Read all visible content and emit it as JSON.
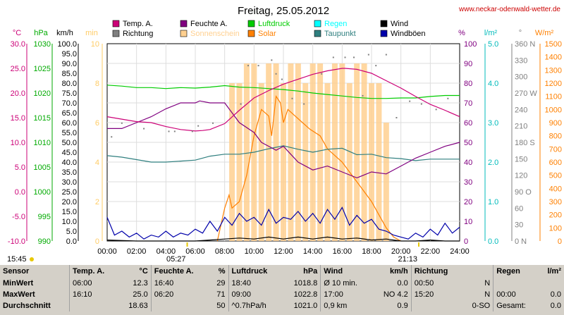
{
  "chart_data": {
    "type": "line",
    "title": "Freitag, 25.05.2012",
    "source": "www.neckar-odenwald-wetter.de",
    "x_ticks": [
      "00:00",
      "02:00",
      "04:00",
      "06:00",
      "08:00",
      "10:00",
      "12:00",
      "14:00",
      "16:00",
      "18:00",
      "20:00",
      "22:00",
      "24:00"
    ],
    "sunrise": "05:27",
    "sunset": "21:13",
    "start_time": "15:45",
    "legend": [
      {
        "name": "Temp. A.",
        "color": "#cc0077"
      },
      {
        "name": "Feuchte A.",
        "color": "#800080"
      },
      {
        "name": "Luftdruck",
        "color": "#00cc00"
      },
      {
        "name": "Regen",
        "color": "#00ffff"
      },
      {
        "name": "Wind",
        "color": "#000000"
      },
      {
        "name": "Richtung",
        "color": "#808080"
      },
      {
        "name": "Sonnenschein",
        "color": "#ffd090"
      },
      {
        "name": "Solar",
        "color": "#ff8000"
      },
      {
        "name": "Taupunkt",
        "color": "#2f7f7f"
      },
      {
        "name": "Windböen",
        "color": "#0000aa"
      }
    ],
    "axes": {
      "temp": {
        "label": "°C",
        "ticks": [
          "30.0",
          "25.0",
          "20.0",
          "15.0",
          "10.0",
          "5.0",
          "0.0",
          "-5.0",
          "-10.0"
        ]
      },
      "pressure": {
        "label": "hPa",
        "ticks": [
          "1030",
          "1025",
          "1020",
          "1015",
          "1010",
          "1005",
          "1000",
          "995",
          "990"
        ]
      },
      "wind": {
        "label": "km/h",
        "ticks": [
          "100.0",
          "95.0",
          "90.0",
          "85.0",
          "80.0",
          "75.0",
          "70.0",
          "65.0",
          "60.0",
          "55.0",
          "50.0",
          "45.0",
          "40.0",
          "35.0",
          "30.0",
          "25.0",
          "20.0",
          "15.0",
          "10.0",
          "5.0",
          "0.0"
        ]
      },
      "sunshine_min": {
        "label": "min",
        "ticks": [
          "10",
          "8",
          "6",
          "4",
          "2",
          "0"
        ]
      },
      "humidity": {
        "label": "%",
        "ticks": [
          "100",
          "90",
          "80",
          "70",
          "60",
          "50",
          "40",
          "30",
          "20",
          "10",
          "0"
        ]
      },
      "rain": {
        "label": "l/m²",
        "ticks": [
          "5.0",
          "4.0",
          "3.0",
          "2.0",
          "1.0",
          "0.0"
        ]
      },
      "direction": {
        "label": "°",
        "ticks": [
          "360 N",
          "330",
          "300",
          "270 W",
          "240",
          "210",
          "180 S",
          "150",
          "120",
          "90 O",
          "60",
          "30",
          "0 N"
        ]
      },
      "solar": {
        "label": "W/m²",
        "ticks": [
          "1500",
          "1400",
          "1300",
          "1200",
          "1100",
          "1000",
          "900",
          "800",
          "700",
          "600",
          "500",
          "400",
          "300",
          "200",
          "100",
          "0"
        ]
      }
    },
    "series": [
      {
        "name": "Temp. A.",
        "unit": "°C",
        "x": [
          0,
          2,
          3,
          4,
          5,
          6,
          6.5,
          7,
          8,
          9,
          10,
          11,
          12,
          13,
          14,
          15,
          16,
          16.2,
          17,
          18,
          19,
          20,
          21,
          22,
          23,
          24
        ],
        "y": [
          15.2,
          14.2,
          14.0,
          13.2,
          12.6,
          12.3,
          12.4,
          12.6,
          13.8,
          16.5,
          19.0,
          20.5,
          21.8,
          22.8,
          23.8,
          24.5,
          25.0,
          25.0,
          24.8,
          24.0,
          22.5,
          21.0,
          19.3,
          17.7,
          16.5,
          15.2
        ]
      },
      {
        "name": "Feuchte A.",
        "unit": "%",
        "x": [
          0,
          1,
          2,
          3,
          4,
          5,
          6,
          6.3,
          7,
          8,
          9,
          10,
          10.5,
          11,
          11.5,
          12,
          12.5,
          13,
          14,
          15,
          16,
          17,
          18,
          19,
          20,
          21,
          22,
          23,
          24
        ],
        "y": [
          57,
          57,
          60,
          63,
          67,
          70,
          70,
          71,
          70,
          70,
          60,
          55,
          50,
          48,
          46,
          48,
          44,
          40,
          36,
          38,
          35,
          32,
          35,
          34,
          38,
          42,
          45,
          48,
          50
        ]
      },
      {
        "name": "Luftdruck",
        "unit": "hPa",
        "x": [
          0,
          1,
          2,
          3,
          4,
          5,
          6,
          7,
          8,
          9,
          10,
          11,
          12,
          13,
          14,
          15,
          16,
          17,
          18,
          19,
          20,
          21,
          22,
          23,
          24
        ],
        "y": [
          1021.6,
          1021.4,
          1021.1,
          1021.1,
          1020.9,
          1021.1,
          1021.0,
          1021.2,
          1021.5,
          1021.2,
          1021.1,
          1020.9,
          1020.7,
          1020.4,
          1020.0,
          1019.7,
          1019.4,
          1019.1,
          1018.9,
          1018.9,
          1019.0,
          1019.0,
          1019.3,
          1019.5,
          1019.5
        ]
      },
      {
        "name": "Taupunkt",
        "unit": "°C",
        "x": [
          0,
          1,
          2,
          3,
          4,
          5,
          6,
          7,
          8,
          9,
          10,
          11,
          12,
          13,
          14,
          15,
          16,
          17,
          18,
          19,
          20,
          21,
          22,
          23,
          24
        ],
        "y": [
          7.3,
          7.0,
          6.5,
          6.0,
          6.0,
          6.2,
          6.4,
          7.2,
          7.6,
          7.6,
          8.0,
          8.7,
          9.3,
          8.6,
          8.0,
          8.6,
          8.8,
          7.5,
          7.6,
          6.9,
          6.7,
          6.3,
          6.6,
          6.6,
          6.6
        ]
      },
      {
        "name": "Solar",
        "unit": "W/m²",
        "x": [
          7.5,
          8,
          8.3,
          8.5,
          9,
          9.5,
          10,
          10.5,
          11,
          11.2,
          11.5,
          11.8,
          12,
          12.3,
          12.8,
          13.3,
          13.8,
          14.5,
          15,
          16,
          17,
          18,
          18.5,
          19,
          19.5,
          20
        ],
        "y": [
          0,
          250,
          350,
          250,
          300,
          500,
          800,
          1000,
          950,
          800,
          1100,
          1050,
          900,
          1000,
          950,
          900,
          850,
          800,
          700,
          600,
          450,
          300,
          200,
          100,
          30,
          0
        ]
      },
      {
        "name": "Wind",
        "unit": "km/h",
        "x": [
          0,
          2,
          4,
          6,
          7,
          8,
          9,
          10,
          11,
          12,
          13,
          14,
          15,
          16,
          17,
          18,
          19,
          20,
          21,
          22,
          23,
          24
        ],
        "y": [
          0.5,
          0,
          0,
          0,
          0.5,
          1,
          1.5,
          1,
          2,
          1,
          2,
          1,
          2,
          1,
          1.5,
          0.5,
          1,
          0,
          0,
          0.5,
          0,
          0
        ]
      },
      {
        "name": "Windböen",
        "unit": "km/h",
        "x": [
          0,
          0.5,
          1,
          1.5,
          2,
          2.5,
          3,
          3.5,
          4,
          4.5,
          5,
          5.5,
          6,
          6.5,
          7,
          7.5,
          8,
          8.5,
          9,
          9.5,
          10,
          10.5,
          11,
          11.5,
          12,
          12.5,
          13,
          13.5,
          14,
          14.5,
          15,
          15.5,
          16,
          16.5,
          17,
          17.5,
          18,
          18.5,
          19,
          19.5,
          20,
          20.5,
          21,
          21.5,
          22,
          22.5,
          23,
          23.5,
          24
        ],
        "y": [
          12,
          3,
          5,
          2,
          4,
          1,
          3,
          2,
          5,
          2,
          4,
          3,
          6,
          4,
          10,
          5,
          12,
          8,
          14,
          10,
          12,
          8,
          16,
          9,
          12,
          11,
          15,
          10,
          14,
          9,
          16,
          11,
          17,
          8,
          13,
          9,
          11,
          6,
          5,
          3,
          2,
          1,
          4,
          2,
          6,
          3,
          9,
          4,
          7
        ]
      },
      {
        "name": "Richtung",
        "unit": "°",
        "x": [
          0.3,
          1.0,
          2.5,
          4.2,
          4.6,
          5.8,
          6.2,
          7.2,
          9.1,
          9.6,
          10.3,
          11.2,
          11.5,
          11.9,
          12.6,
          13.4,
          14.6,
          15.4,
          16.2,
          16.8,
          17.4,
          17.8,
          18.3,
          19.0,
          19.7,
          20.6,
          21.4,
          22.4,
          23.2
        ],
        "y": [
          190,
          215,
          205,
          200,
          200,
          200,
          210,
          215,
          250,
          320,
          320,
          330,
          305,
          295,
          260,
          250,
          305,
          335,
          335,
          335,
          265,
          340,
          320,
          340,
          225,
          255,
          250,
          240,
          260
        ]
      },
      {
        "name": "Sonnenschein",
        "unit": "min",
        "x": [
          8.5,
          9,
          9.5,
          10,
          10.5,
          11,
          11.5,
          12,
          12.5,
          13,
          13.5,
          14,
          14.5,
          15,
          15.5,
          16,
          16.5,
          17,
          17.5,
          18,
          18.5,
          19
        ],
        "y": [
          8,
          8,
          9,
          9,
          8,
          9,
          9,
          8,
          9,
          9,
          8,
          9,
          9,
          8,
          9,
          9,
          8,
          9,
          9,
          8,
          8,
          6
        ]
      }
    ]
  },
  "stats": {
    "headers": {
      "sensor": "Sensor",
      "temp": "Temp. A.",
      "temp_unit": "°C",
      "hum": "Feuchte A.",
      "hum_unit": "%",
      "press": "Luftdruck",
      "press_unit": "hPa",
      "wind": "Wind",
      "wind_unit": "km/h",
      "dir": "Richtung",
      "rain": "Regen",
      "rain_unit": "l/m²"
    },
    "rows": [
      {
        "label": "MinWert",
        "temp_time": "06:00",
        "temp_val": "12.3",
        "hum_time": "16:40",
        "hum_val": "29",
        "press_time": "18:40",
        "press_val": "1018.8",
        "wind_time": "Ø 10 min.",
        "wind_val": "0.0",
        "dir_time": "00:50",
        "dir_val": "N",
        "rain_time": "",
        "rain_val": ""
      },
      {
        "label": "MaxWert",
        "temp_time": "16:10",
        "temp_val": "25.0",
        "hum_time": "06:20",
        "hum_val": "71",
        "press_time": "09:00",
        "press_val": "1022.8",
        "wind_time": "17:00",
        "wind_val": "NO 4.2",
        "dir_time": "15:20",
        "dir_val": "N",
        "rain_time": "00:00",
        "rain_val": "0.0"
      },
      {
        "label": "Durchschnitt",
        "temp_time": "",
        "temp_val": "18.63",
        "hum_time": "",
        "hum_val": "50",
        "press_time": "^0.7hPa/h",
        "press_val": "1021.0",
        "wind_time": "0,9 km",
        "wind_val": "0.9",
        "dir_time": "",
        "dir_val": "0-SO",
        "rain_time": "Gesamt:",
        "rain_val": "0.0"
      }
    ]
  }
}
